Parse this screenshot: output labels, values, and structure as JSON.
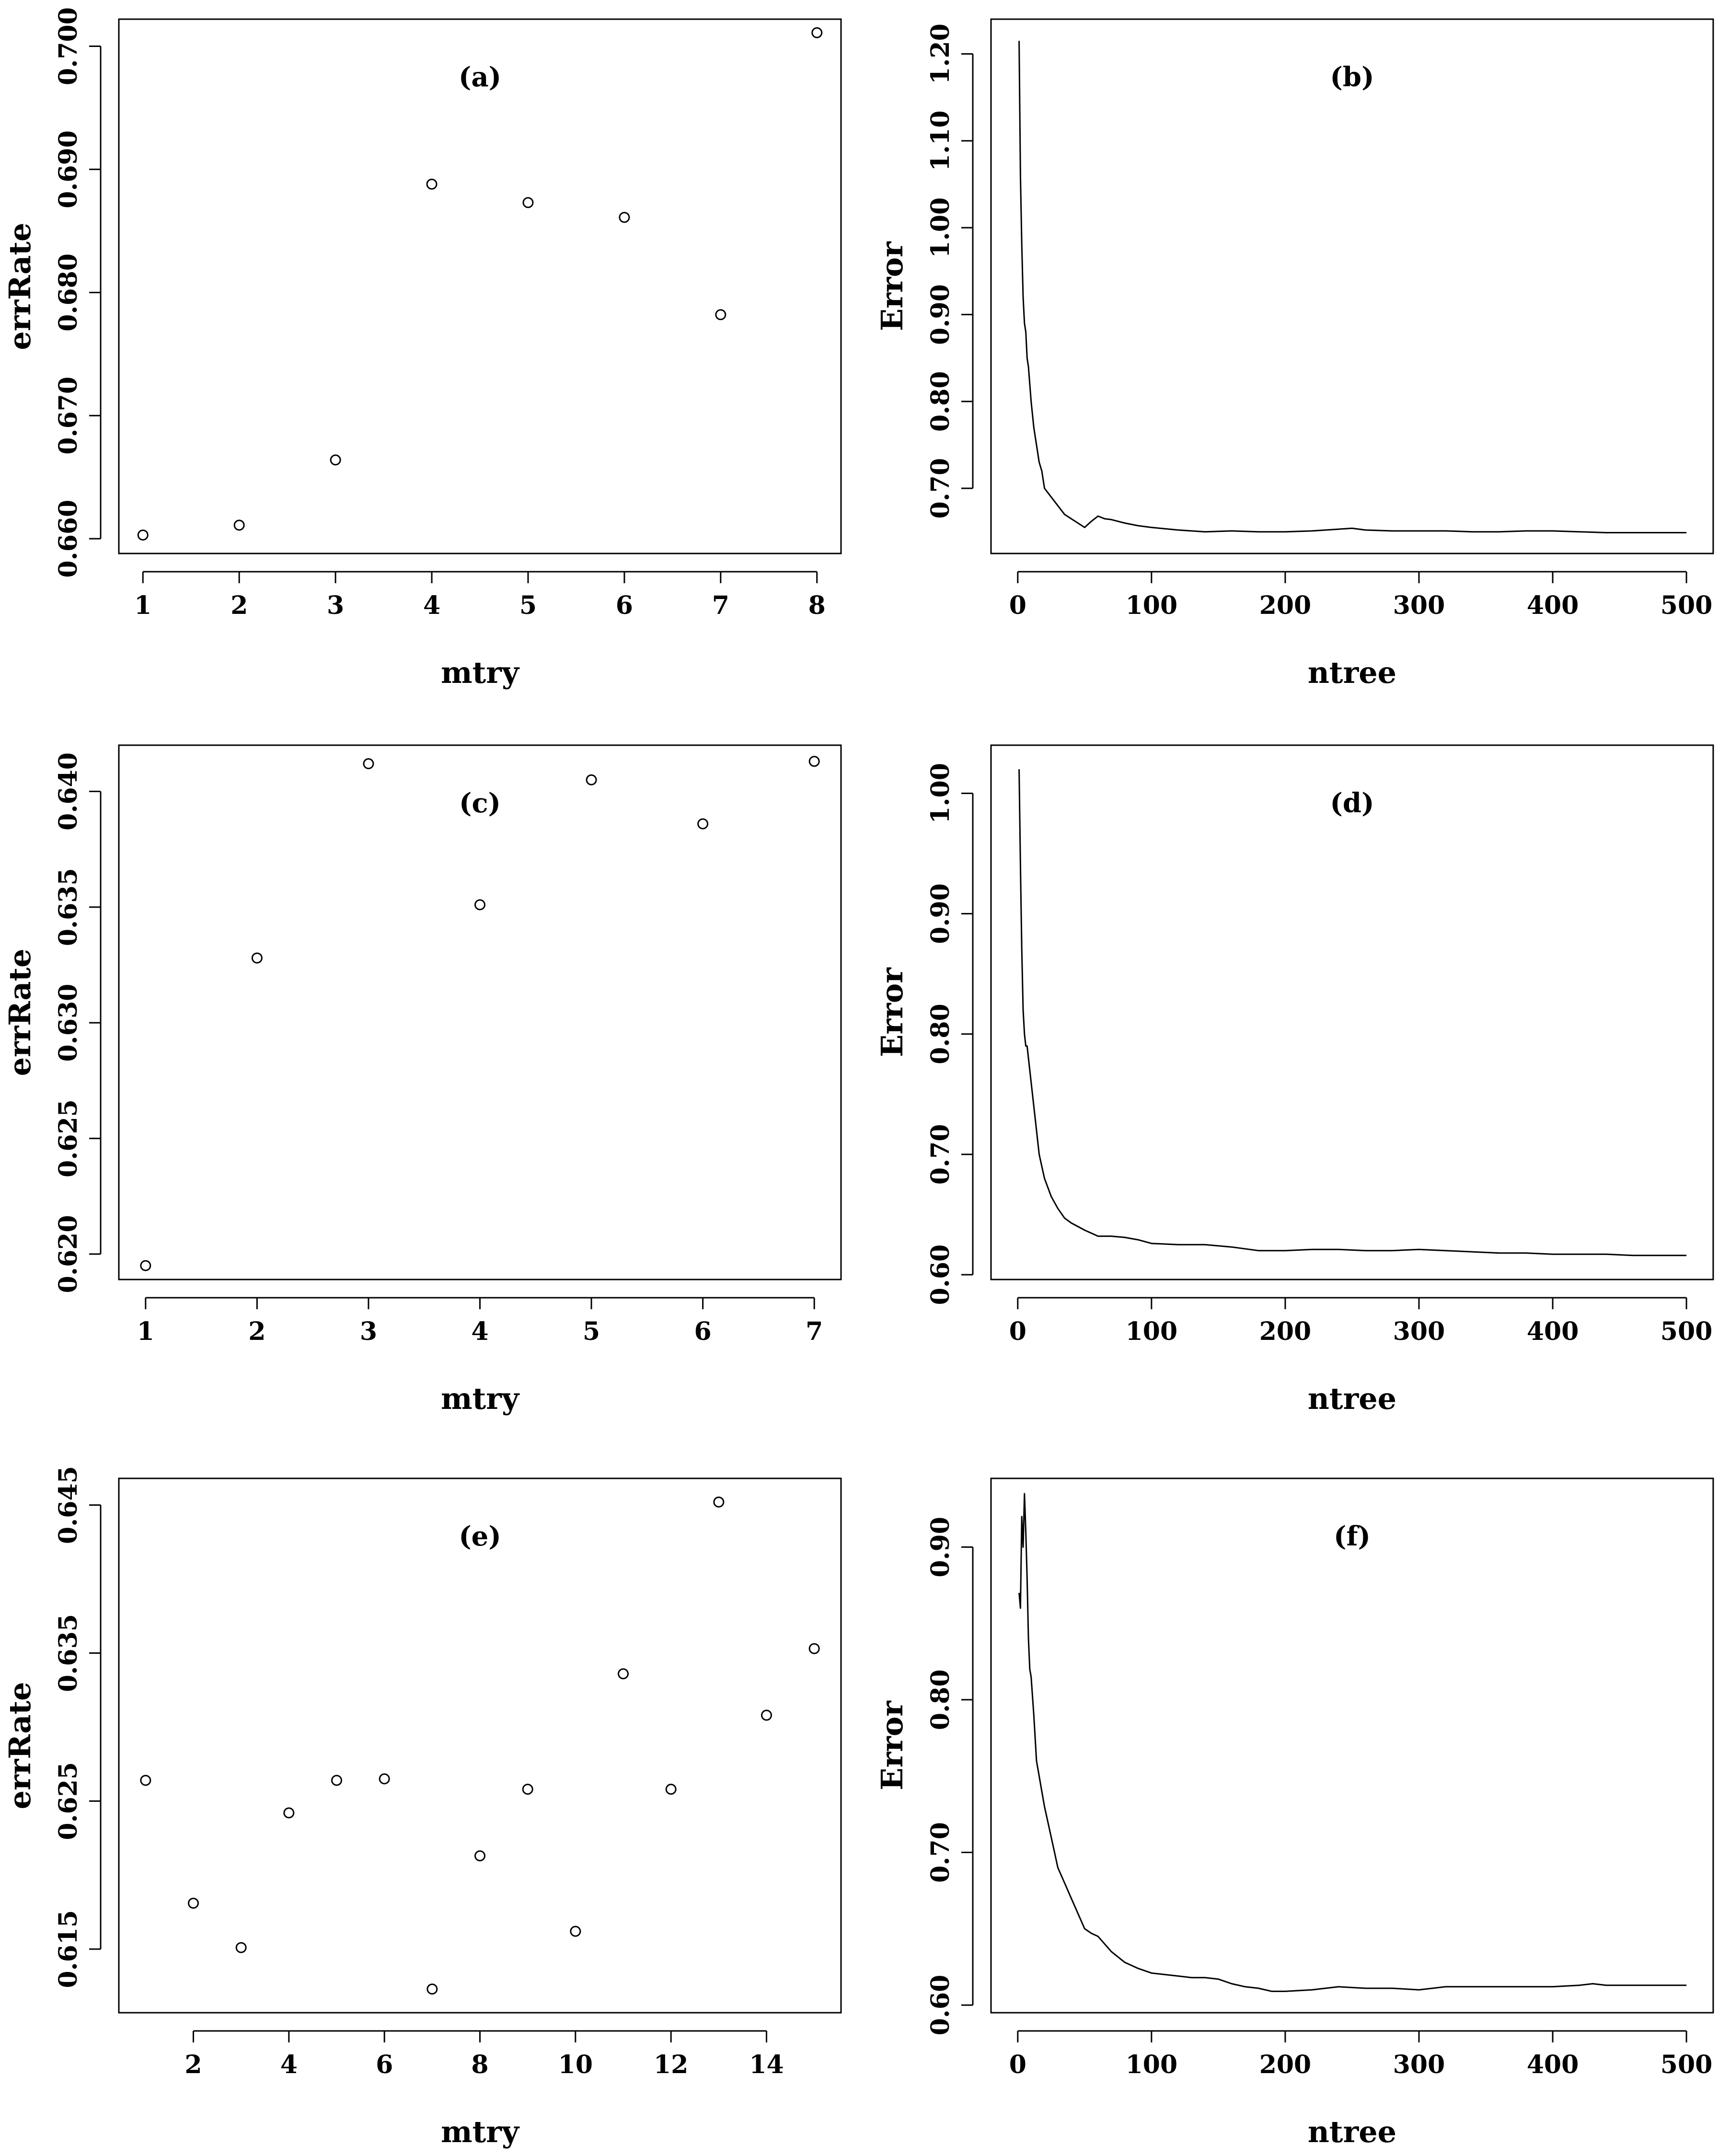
{
  "chart_data": [
    {
      "id": "a",
      "type": "scatter",
      "title": "(a)",
      "xlabel": "mtry",
      "ylabel": "errRate",
      "xlim": [
        0.75,
        8.25
      ],
      "ylim": [
        0.6588,
        0.7022
      ],
      "xticks": [
        1,
        2,
        3,
        4,
        5,
        6,
        7,
        8
      ],
      "xtick_labels": [
        "1",
        "2",
        "3",
        "4",
        "5",
        "6",
        "7",
        "8"
      ],
      "yticks": [
        0.66,
        0.67,
        0.68,
        0.69,
        0.7
      ],
      "ytick_labels": [
        "0.660",
        "0.670",
        "0.680",
        "0.690",
        "0.700"
      ],
      "x": [
        1,
        2,
        3,
        4,
        5,
        6,
        7,
        8
      ],
      "y": [
        0.6603,
        0.6611,
        0.6664,
        0.6888,
        0.6873,
        0.6861,
        0.6782,
        0.7011
      ]
    },
    {
      "id": "b",
      "type": "line",
      "title": "(b)",
      "xlabel": "ntree",
      "ylabel": "Error",
      "xlim": [
        -20,
        520
      ],
      "ylim": [
        0.625,
        1.24
      ],
      "xticks": [
        0,
        100,
        200,
        300,
        400,
        500
      ],
      "xtick_labels": [
        "0",
        "100",
        "200",
        "300",
        "400",
        "500"
      ],
      "yticks": [
        0.7,
        0.8,
        0.9,
        1.0,
        1.1,
        1.2
      ],
      "ytick_labels": [
        "0.70",
        "0.80",
        "0.90",
        "1.00",
        "1.10",
        "1.20"
      ],
      "x": [
        1,
        2,
        3,
        4,
        5,
        6,
        7,
        8,
        10,
        12,
        14,
        16,
        18,
        20,
        25,
        30,
        35,
        40,
        45,
        50,
        55,
        60,
        65,
        70,
        80,
        90,
        100,
        120,
        140,
        160,
        180,
        200,
        220,
        240,
        250,
        260,
        280,
        300,
        320,
        340,
        360,
        380,
        400,
        420,
        440,
        460,
        480,
        500
      ],
      "y": [
        1.215,
        1.06,
        0.98,
        0.92,
        0.89,
        0.88,
        0.85,
        0.84,
        0.8,
        0.77,
        0.75,
        0.73,
        0.72,
        0.7,
        0.69,
        0.68,
        0.67,
        0.665,
        0.66,
        0.655,
        0.662,
        0.668,
        0.665,
        0.664,
        0.66,
        0.657,
        0.655,
        0.652,
        0.65,
        0.651,
        0.65,
        0.65,
        0.651,
        0.653,
        0.654,
        0.652,
        0.651,
        0.651,
        0.651,
        0.65,
        0.65,
        0.651,
        0.651,
        0.65,
        0.649,
        0.649,
        0.649,
        0.649
      ]
    },
    {
      "id": "c",
      "type": "scatter",
      "title": "(c)",
      "xlabel": "mtry",
      "ylabel": "errRate",
      "xlim": [
        0.76,
        7.24
      ],
      "ylim": [
        0.6189,
        0.642
      ],
      "xticks": [
        1,
        2,
        3,
        4,
        5,
        6,
        7
      ],
      "xtick_labels": [
        "1",
        "2",
        "3",
        "4",
        "5",
        "6",
        "7"
      ],
      "yticks": [
        0.62,
        0.625,
        0.63,
        0.635,
        0.64
      ],
      "ytick_labels": [
        "0.620",
        "0.625",
        "0.630",
        "0.635",
        "0.640"
      ],
      "x": [
        1,
        2,
        3,
        4,
        5,
        6,
        7
      ],
      "y": [
        0.6195,
        0.6328,
        0.6412,
        0.6351,
        0.6405,
        0.6386,
        0.6413
      ]
    },
    {
      "id": "d",
      "type": "line",
      "title": "(d)",
      "xlabel": "ntree",
      "ylabel": "Error",
      "xlim": [
        -20,
        520
      ],
      "ylim": [
        0.596,
        1.04
      ],
      "xticks": [
        0,
        100,
        200,
        300,
        400,
        500
      ],
      "xtick_labels": [
        "0",
        "100",
        "200",
        "300",
        "400",
        "500"
      ],
      "yticks": [
        0.6,
        0.7,
        0.8,
        0.9,
        1.0
      ],
      "ytick_labels": [
        "0.60",
        "0.70",
        "0.80",
        "0.90",
        "1.00"
      ],
      "x": [
        1,
        2,
        3,
        4,
        5,
        6,
        7,
        8,
        10,
        12,
        14,
        16,
        18,
        20,
        25,
        30,
        35,
        40,
        45,
        50,
        60,
        70,
        80,
        90,
        100,
        120,
        140,
        160,
        180,
        200,
        220,
        240,
        260,
        280,
        300,
        320,
        340,
        360,
        380,
        400,
        420,
        440,
        460,
        480,
        500
      ],
      "y": [
        1.02,
        0.94,
        0.87,
        0.82,
        0.8,
        0.79,
        0.79,
        0.78,
        0.76,
        0.74,
        0.72,
        0.7,
        0.69,
        0.68,
        0.665,
        0.655,
        0.647,
        0.643,
        0.64,
        0.637,
        0.632,
        0.632,
        0.631,
        0.629,
        0.626,
        0.625,
        0.625,
        0.623,
        0.62,
        0.62,
        0.621,
        0.621,
        0.62,
        0.62,
        0.621,
        0.62,
        0.619,
        0.618,
        0.618,
        0.617,
        0.617,
        0.617,
        0.616,
        0.616,
        0.616
      ]
    },
    {
      "id": "e",
      "type": "scatter",
      "title": "(e)",
      "xlabel": "mtry",
      "ylabel": "errRate",
      "xlim": [
        0.44,
        15.56
      ],
      "ylim": [
        0.6107,
        0.6468
      ],
      "xticks": [
        2,
        4,
        6,
        8,
        10,
        12,
        14
      ],
      "xtick_labels": [
        "2",
        "4",
        "6",
        "8",
        "10",
        "12",
        "14"
      ],
      "yticks": [
        0.615,
        0.625,
        0.635,
        0.645
      ],
      "ytick_labels": [
        "0.615",
        "0.625",
        "0.635",
        "0.645"
      ],
      "x": [
        1,
        2,
        3,
        4,
        5,
        6,
        7,
        8,
        9,
        10,
        11,
        12,
        13,
        14,
        15
      ],
      "y": [
        0.6264,
        0.6181,
        0.6151,
        0.6242,
        0.6264,
        0.6265,
        0.6123,
        0.6213,
        0.6258,
        0.6162,
        0.6336,
        0.6258,
        0.6452,
        0.6308,
        0.6353
      ]
    },
    {
      "id": "f",
      "type": "line",
      "title": "(f)",
      "xlabel": "ntree",
      "ylabel": "Error",
      "xlim": [
        -20,
        520
      ],
      "ylim": [
        0.595,
        0.945
      ],
      "xticks": [
        0,
        100,
        200,
        300,
        400,
        500
      ],
      "xtick_labels": [
        "0",
        "100",
        "200",
        "300",
        "400",
        "500"
      ],
      "yticks": [
        0.6,
        0.7,
        0.8,
        0.9
      ],
      "ytick_labels": [
        "0.60",
        "0.70",
        "0.80",
        "0.90"
      ],
      "x": [
        1,
        2,
        3,
        4,
        5,
        6,
        7,
        8,
        9,
        10,
        12,
        14,
        16,
        18,
        20,
        25,
        30,
        35,
        40,
        45,
        50,
        55,
        60,
        65,
        70,
        80,
        90,
        100,
        110,
        120,
        130,
        140,
        150,
        160,
        170,
        180,
        190,
        200,
        220,
        240,
        260,
        280,
        300,
        320,
        340,
        360,
        380,
        400,
        420,
        430,
        440,
        460,
        480,
        500
      ],
      "y": [
        0.87,
        0.86,
        0.92,
        0.9,
        0.935,
        0.91,
        0.88,
        0.84,
        0.82,
        0.815,
        0.79,
        0.76,
        0.75,
        0.74,
        0.73,
        0.71,
        0.69,
        0.68,
        0.67,
        0.66,
        0.65,
        0.647,
        0.645,
        0.64,
        0.635,
        0.628,
        0.624,
        0.621,
        0.62,
        0.619,
        0.618,
        0.618,
        0.617,
        0.614,
        0.612,
        0.611,
        0.609,
        0.609,
        0.61,
        0.612,
        0.611,
        0.611,
        0.61,
        0.612,
        0.612,
        0.612,
        0.612,
        0.612,
        0.613,
        0.614,
        0.613,
        0.613,
        0.613,
        0.613
      ]
    }
  ]
}
